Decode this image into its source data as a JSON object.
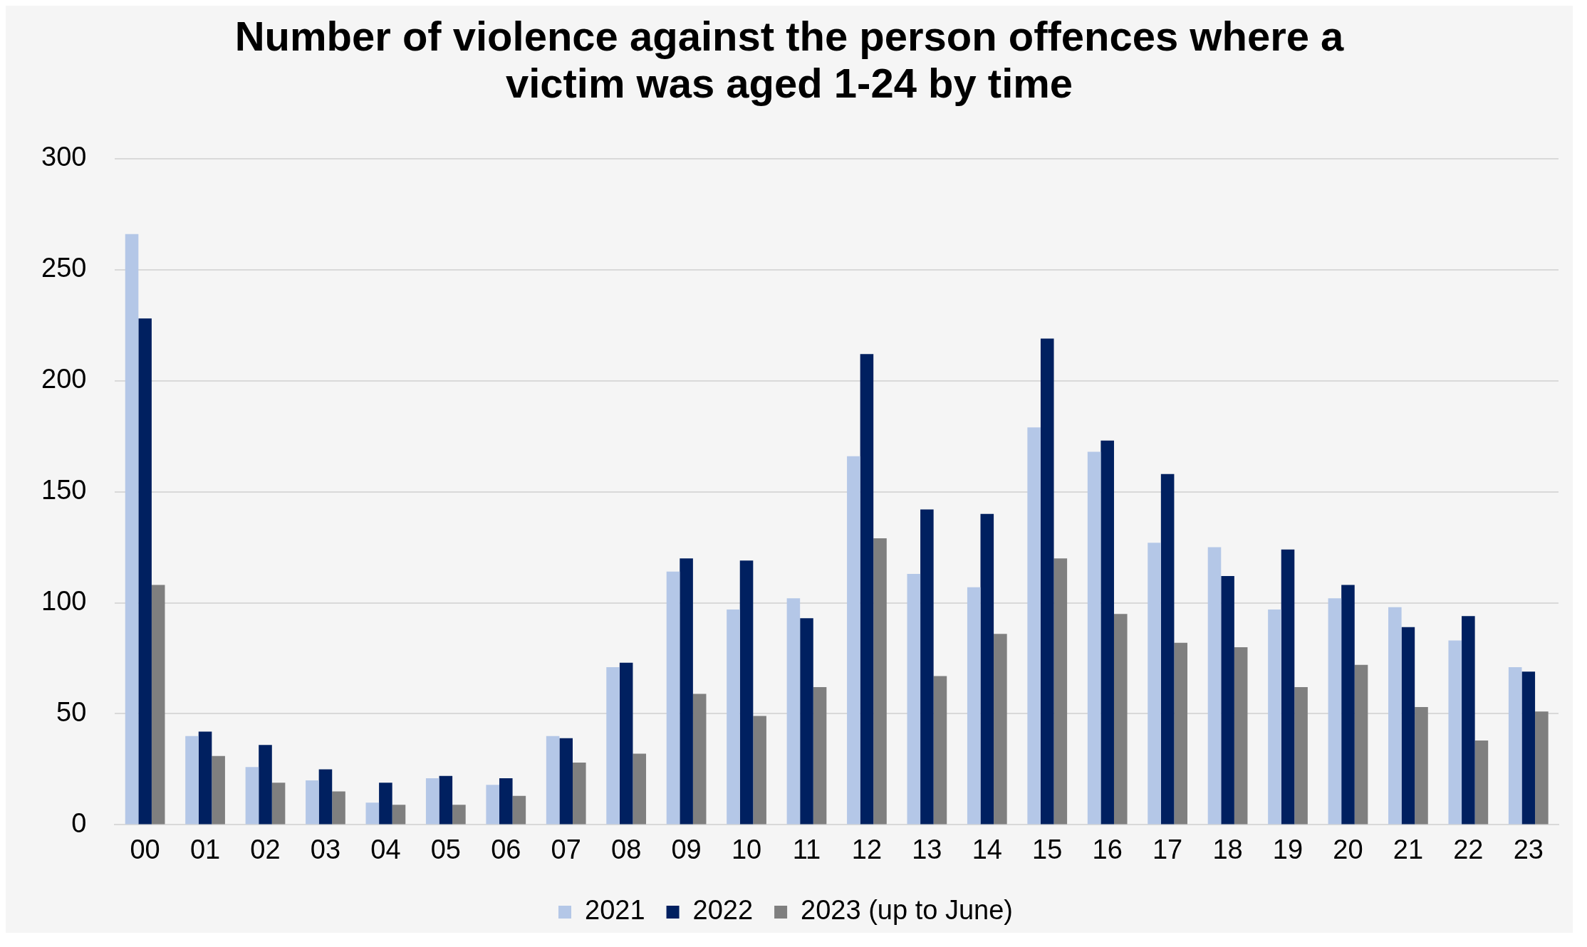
{
  "chart_data": {
    "type": "bar",
    "title": "Number of violence against the person offences where a victim was aged 1-24 by time",
    "categories": [
      "00",
      "01",
      "02",
      "03",
      "04",
      "05",
      "06",
      "07",
      "08",
      "09",
      "10",
      "11",
      "12",
      "13",
      "14",
      "15",
      "16",
      "17",
      "18",
      "19",
      "20",
      "21",
      "22",
      "23"
    ],
    "series": [
      {
        "name": "2021",
        "color": "#b4c7e7",
        "values": [
          266,
          40,
          26,
          20,
          10,
          21,
          18,
          40,
          71,
          114,
          97,
          102,
          166,
          113,
          107,
          179,
          168,
          127,
          125,
          97,
          102,
          98,
          83,
          71
        ]
      },
      {
        "name": "2022",
        "color": "#002060",
        "values": [
          228,
          42,
          36,
          25,
          19,
          22,
          21,
          39,
          73,
          120,
          119,
          93,
          212,
          142,
          140,
          219,
          173,
          158,
          112,
          124,
          108,
          89,
          94,
          69
        ]
      },
      {
        "name": "2023 (up to June)",
        "color": "#7f7f7f",
        "values": [
          108,
          31,
          19,
          15,
          9,
          9,
          13,
          28,
          32,
          59,
          49,
          62,
          129,
          67,
          86,
          120,
          95,
          82,
          80,
          62,
          72,
          53,
          38,
          51
        ]
      }
    ],
    "ylim": [
      0,
      300
    ],
    "yticks": [
      0,
      50,
      100,
      150,
      200,
      250,
      300
    ],
    "grid": "y",
    "legend": "bottom"
  }
}
